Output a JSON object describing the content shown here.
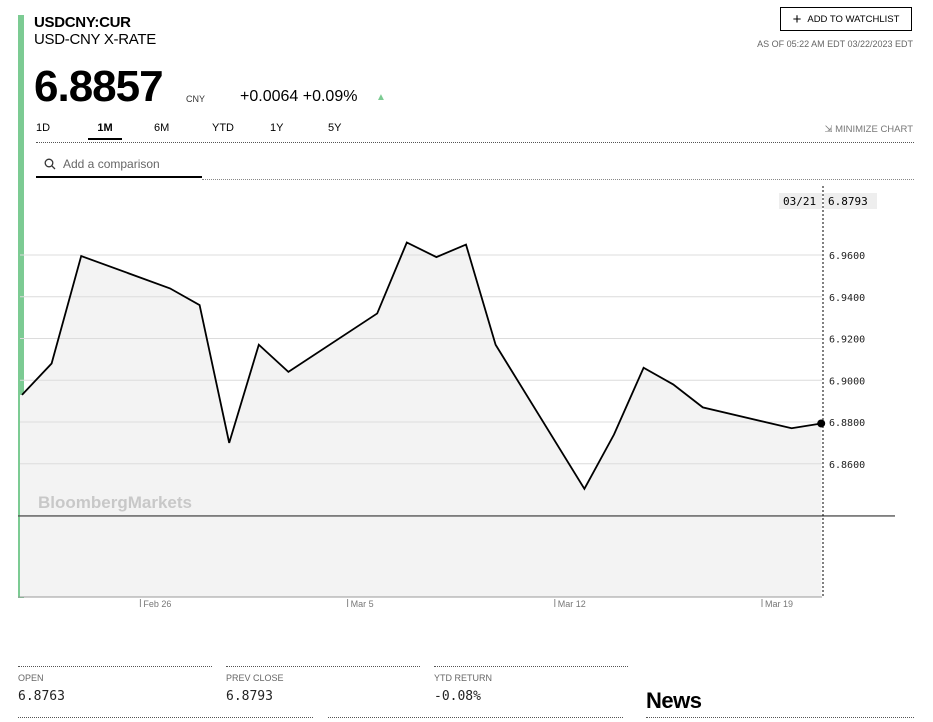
{
  "header": {
    "ticker": "USDCNY:CUR",
    "name": "USD-CNY X-RATE",
    "price": "6.8857",
    "currency": "CNY",
    "change": "+0.0064",
    "change_pct": "+0.09%",
    "direction_icon": "triangle-up-icon",
    "as_of": "AS OF 05:22 AM EDT 03/22/2023 EDT",
    "watchlist_label": "ADD TO WATCHLIST"
  },
  "tabs": [
    {
      "label": "1D"
    },
    {
      "label": "1M",
      "active": true
    },
    {
      "label": "6M"
    },
    {
      "label": "YTD"
    },
    {
      "label": "1Y"
    },
    {
      "label": "5Y"
    }
  ],
  "minimize_label": "MINIMIZE CHART",
  "search": {
    "placeholder": "Add a comparison"
  },
  "colors": {
    "accent": "#7ccb93",
    "line": "#000000",
    "fill": "#f3f3f3"
  },
  "chart_data": {
    "type": "area",
    "watermark": "BloombergMarkets",
    "tooltip": {
      "date": "03/21",
      "value": "6.8793"
    },
    "x": [
      "2023-02-22",
      "2023-02-23",
      "2023-02-24",
      "2023-02-27",
      "2023-02-28",
      "2023-03-01",
      "2023-03-02",
      "2023-03-03",
      "2023-03-06",
      "2023-03-07",
      "2023-03-08",
      "2023-03-09",
      "2023-03-10",
      "2023-03-13",
      "2023-03-14",
      "2023-03-15",
      "2023-03-16",
      "2023-03-17",
      "2023-03-20",
      "2023-03-21"
    ],
    "values": [
      6.893,
      6.908,
      6.9595,
      6.944,
      6.936,
      6.87,
      6.917,
      6.904,
      6.932,
      6.966,
      6.959,
      6.965,
      6.917,
      6.848,
      6.874,
      6.906,
      6.898,
      6.887,
      6.877,
      6.8793
    ],
    "x_ticks": [
      {
        "date": "2023-02-26",
        "label": "Feb 26"
      },
      {
        "date": "2023-03-05",
        "label": "Mar 5"
      },
      {
        "date": "2023-03-12",
        "label": "Mar 12"
      },
      {
        "date": "2023-03-19",
        "label": "Mar 19"
      }
    ],
    "y_ticks": [
      "6.9600",
      "6.9400",
      "6.9200",
      "6.9000",
      "6.8800",
      "6.8600"
    ],
    "baseline": 6.835,
    "grid": true
  },
  "stats": [
    {
      "label": "OPEN",
      "value": "6.8763"
    },
    {
      "label": "PREV CLOSE",
      "value": "6.8793"
    },
    {
      "label": "YTD RETURN",
      "value": "-0.08%"
    }
  ],
  "news_title": "News"
}
